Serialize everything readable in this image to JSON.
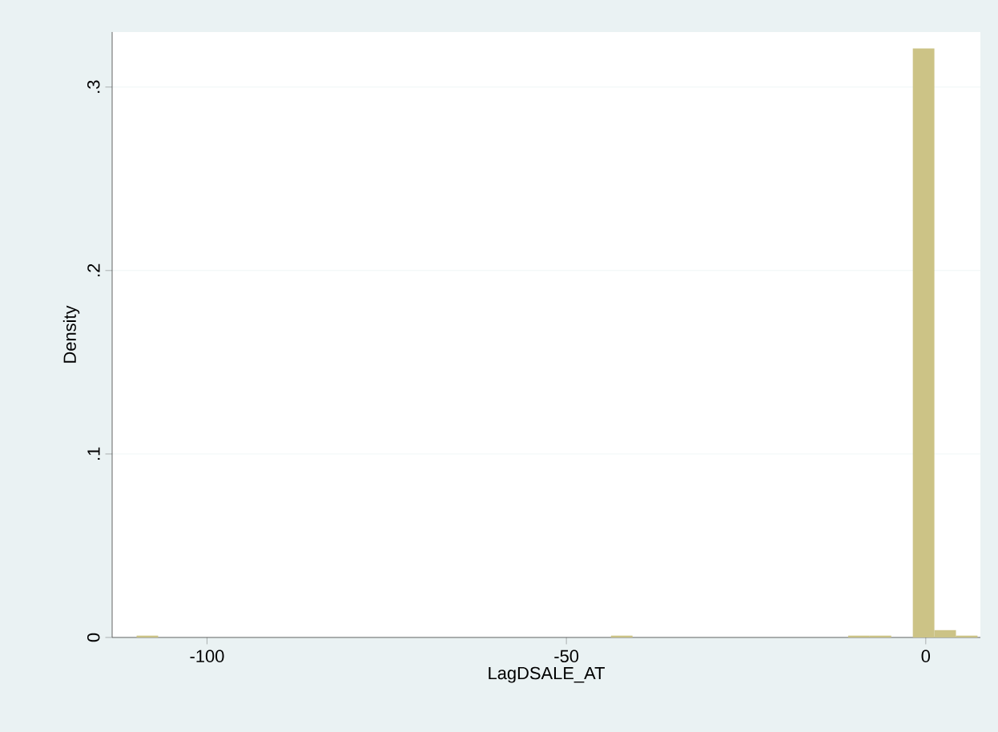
{
  "chart_data": {
    "type": "histogram",
    "xlabel": "LagDSALE_AT",
    "ylabel": "Density",
    "color": "#ccc386",
    "bins": [
      -109.8,
      -106.8,
      -103.8,
      -100.8,
      -97.8,
      -94.8,
      -91.8,
      -88.8,
      -85.8,
      -82.8,
      -79.8,
      -76.8,
      -73.8,
      -70.8,
      -67.8,
      -64.8,
      -61.8,
      -58.8,
      -55.8,
      -52.8,
      -49.8,
      -46.8,
      -43.8,
      -40.8,
      -37.8,
      -34.8,
      -31.8,
      -28.8,
      -25.8,
      -22.8,
      -19.8,
      -16.8,
      -13.8,
      -10.8,
      -7.8,
      -4.8,
      -1.8,
      1.2,
      4.2,
      7.2
    ],
    "values": [
      0.001,
      0,
      0,
      0,
      0,
      0,
      0,
      0,
      0,
      0,
      0,
      0,
      0,
      0,
      0,
      0,
      0,
      0,
      0,
      0,
      0,
      0,
      0.001,
      0,
      0,
      0,
      0,
      0,
      0,
      0,
      0,
      0,
      0,
      0.001,
      0.001,
      0,
      0.321,
      0.004,
      0.001
    ],
    "xlim": [
      -113.2,
      7.6
    ],
    "ylim": [
      0,
      0.33
    ],
    "xticks": [
      -100,
      -50,
      0
    ],
    "yticks": [
      0,
      {
        "value": 0.1,
        "label": ".1"
      },
      {
        "value": 0.2,
        "label": ".2"
      },
      {
        "value": 0.3,
        "label": ".3"
      }
    ],
    "grid": "y"
  }
}
